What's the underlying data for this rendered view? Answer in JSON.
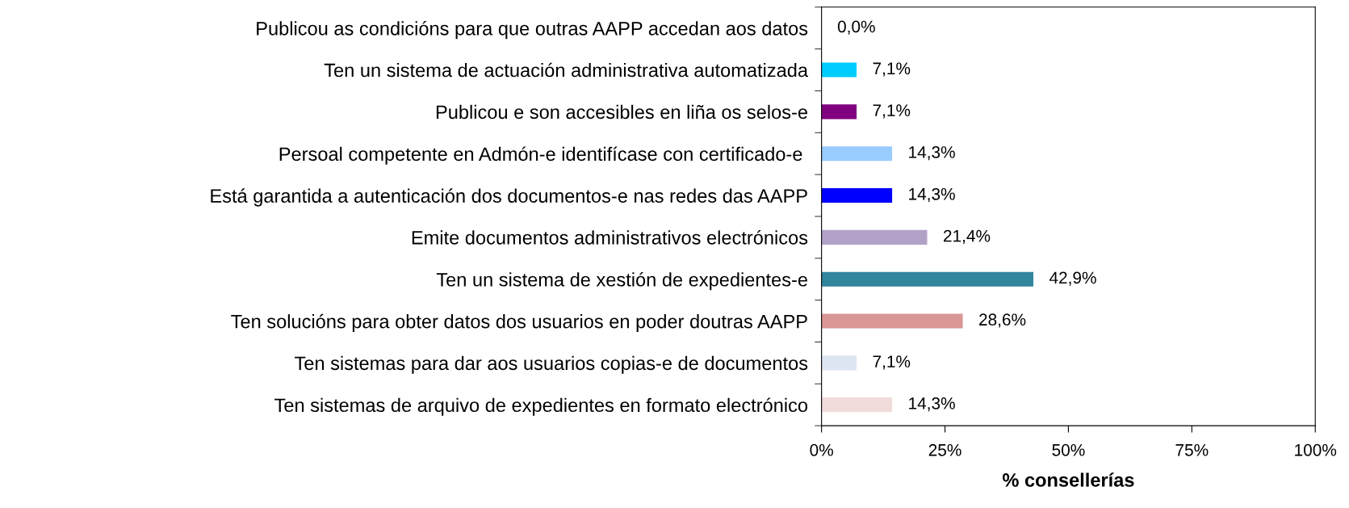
{
  "chart_data": {
    "type": "bar",
    "orientation": "horizontal",
    "xlabel": "% consellerías",
    "categories": [
      "Publicou as condicións para que outras AAPP accedan aos datos",
      "Ten un sistema de actuación administrativa automatizada",
      "Publicou e son accesibles en liña os selos-e",
      "Persoal competente en Admón-e identifícase con certificado-e ",
      "Está garantida a autenticación dos documentos-e nas redes das AAPP",
      "Emite documentos administrativos electrónicos",
      "Ten un sistema de xestión de expedientes-e",
      "Ten solucións para obter datos dos usuarios en poder doutras AAPP",
      "Ten sistemas para dar aos usuarios copias-e de documentos",
      "Ten sistemas de arquivo de expedientes en formato electrónico"
    ],
    "values": [
      0.0,
      7.1,
      7.1,
      14.3,
      14.3,
      21.4,
      42.9,
      28.6,
      7.1,
      14.3
    ],
    "value_labels": [
      "0,0%",
      "7,1%",
      "7,1%",
      "14,3%",
      "14,3%",
      "21,4%",
      "42,9%",
      "28,6%",
      "7,1%",
      "14,3%"
    ],
    "colors": [
      "#00ccff",
      "#00ccff",
      "#800080",
      "#99ccff",
      "#0000ff",
      "#b3a2c7",
      "#31859c",
      "#d99694",
      "#dce6f2",
      "#f2dcdb"
    ],
    "xlim": [
      0,
      100
    ],
    "xticks": [
      {
        "value": 0,
        "label": "0%"
      },
      {
        "value": 25,
        "label": "25%"
      },
      {
        "value": 50,
        "label": "50%"
      },
      {
        "value": 75,
        "label": "75%"
      },
      {
        "value": 100,
        "label": "100%"
      }
    ],
    "grid": false,
    "legend": false
  }
}
